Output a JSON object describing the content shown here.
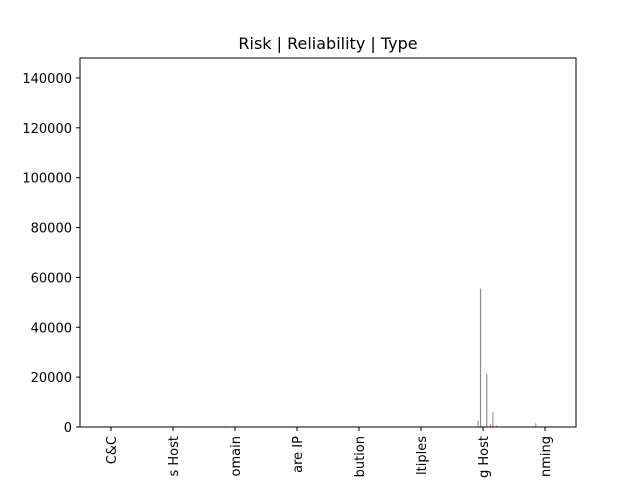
{
  "chart_data": {
    "type": "bar",
    "title": "Risk | Reliability | Type",
    "xlabel": "",
    "ylabel": "",
    "ylim": [
      0,
      148000
    ],
    "yticks": [
      0,
      20000,
      40000,
      60000,
      80000,
      100000,
      120000,
      140000
    ],
    "ytick_labels": [
      "0",
      "20000",
      "40000",
      "60000",
      "80000",
      "100000",
      "120000",
      "140000"
    ],
    "categories": [
      "C&C",
      "s Host",
      "omain",
      "are IP",
      "bution",
      "ltiples",
      "g Host",
      "nming"
    ],
    "legend": false,
    "grid": false,
    "bars": [
      {
        "category_index": 1,
        "offset": 0.05,
        "value": 400,
        "color": "#b9a6d6"
      },
      {
        "category_index": 2,
        "offset": -0.15,
        "value": 600,
        "color": "#b8e2e6"
      },
      {
        "category_index": 3,
        "offset": -0.1,
        "value": 400,
        "color": "#d6b3d6"
      },
      {
        "category_index": 6,
        "offset": -0.08,
        "value": 2500,
        "color": "#c77fd3"
      },
      {
        "category_index": 6,
        "offset": -0.04,
        "value": 55500,
        "color": "#8c8c8c"
      },
      {
        "category_index": 6,
        "offset": 0.06,
        "value": 21200,
        "color": "#8c8c8c"
      },
      {
        "category_index": 6,
        "offset": 0.12,
        "value": 1200,
        "color": "#c77fd3"
      },
      {
        "category_index": 6,
        "offset": 0.16,
        "value": 6000,
        "color": "#c77fd3"
      },
      {
        "category_index": 6,
        "offset": 0.22,
        "value": 600,
        "color": "#c77fd3"
      },
      {
        "category_index": 7,
        "offset": -0.15,
        "value": 1500,
        "color": "#c77fd3"
      },
      {
        "category_index": 7,
        "offset": -0.05,
        "value": 300,
        "color": "#bdbdbd"
      }
    ]
  }
}
